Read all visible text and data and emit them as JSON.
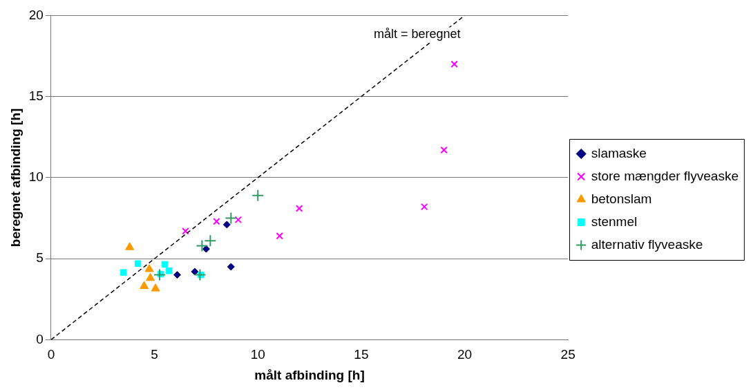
{
  "chart_data": {
    "type": "scatter",
    "xlabel": "målt afbinding [h]",
    "ylabel": "beregnet afbinding [h]",
    "xlim": [
      0,
      25
    ],
    "xticks": [
      0,
      5,
      10,
      15,
      20,
      25
    ],
    "ylim": [
      0,
      20
    ],
    "yticks": [
      0,
      5,
      10,
      15,
      20
    ],
    "grid": "y",
    "legend": "right",
    "annotations": [
      "målt = beregnet"
    ],
    "series": [
      {
        "name": "slamaske",
        "color": "#000080",
        "marker": "diamond",
        "x": [
          8.5,
          7.5,
          8.7,
          6.1,
          6.95
        ],
        "values": [
          7.1,
          5.6,
          4.5,
          4.0,
          4.2
        ]
      },
      {
        "name": "store mængder flyveaske",
        "color": "#ff00ff",
        "marker": "cross",
        "x": [
          19.5,
          19.0,
          18.05,
          12.0,
          11.05,
          9.05,
          8.0,
          6.5
        ],
        "values": [
          17.0,
          11.7,
          8.2,
          8.1,
          6.4,
          7.4,
          7.3,
          6.7
        ]
      },
      {
        "name": "betonslam",
        "color": "#ff9900",
        "marker": "triangle",
        "x": [
          3.8,
          4.75,
          4.8,
          4.5,
          5.05
        ],
        "values": [
          5.7,
          4.35,
          3.8,
          3.3,
          3.15
        ]
      },
      {
        "name": "stenmel",
        "color": "#00ffff",
        "marker": "square",
        "x": [
          3.5,
          4.2,
          5.5,
          5.7,
          5.3,
          7.25
        ],
        "values": [
          4.15,
          4.7,
          4.65,
          4.25,
          4.05,
          4.0
        ]
      },
      {
        "name": "alternativ flyveaske",
        "color": "#339966",
        "marker": "plus",
        "x": [
          10.0,
          8.7,
          7.7,
          7.3,
          5.25,
          7.2
        ],
        "values": [
          8.9,
          7.5,
          6.1,
          5.8,
          4.0,
          4.0
        ]
      },
      {
        "type": "line",
        "color": "#000000",
        "line_style": "dashed",
        "marker": "none",
        "x": [
          0,
          20
        ],
        "values": [
          0,
          20
        ]
      }
    ]
  }
}
